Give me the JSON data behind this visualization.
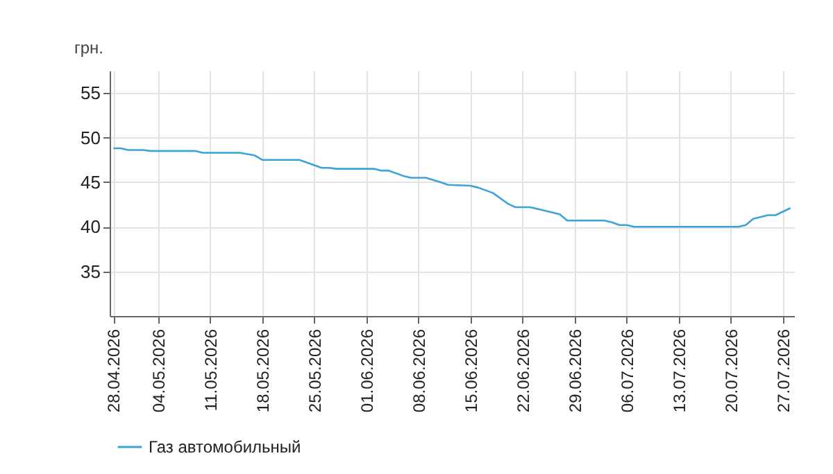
{
  "chart_data": {
    "type": "line",
    "ylabel": "грн.",
    "legend": "bottom",
    "grid": true,
    "marker": "none",
    "line_style": "solid",
    "x": [
      "2026-04-28",
      "2026-04-29",
      "2026-04-30",
      "2026-05-02",
      "2026-05-03",
      "2026-05-09",
      "2026-05-10",
      "2026-05-15",
      "2026-05-17",
      "2026-05-18",
      "2026-05-23",
      "2026-05-24",
      "2026-05-26",
      "2026-05-27",
      "2026-05-28",
      "2026-06-02",
      "2026-06-03",
      "2026-06-04",
      "2026-06-06",
      "2026-06-07",
      "2026-06-09",
      "2026-06-11",
      "2026-06-12",
      "2026-06-15",
      "2026-06-16",
      "2026-06-18",
      "2026-06-20",
      "2026-06-21",
      "2026-06-23",
      "2026-06-24",
      "2026-06-25",
      "2026-06-27",
      "2026-06-28",
      "2026-07-03",
      "2026-07-04",
      "2026-07-05",
      "2026-07-06",
      "2026-07-07",
      "2026-07-21",
      "2026-07-22",
      "2026-07-23",
      "2026-07-25",
      "2026-07-26",
      "2026-07-28"
    ],
    "series": [
      {
        "name": "Газ автомобильный",
        "color": "#3ba3d9",
        "values": [
          48.8,
          48.8,
          48.6,
          48.6,
          48.5,
          48.5,
          48.3,
          48.3,
          48.0,
          47.5,
          47.5,
          47.2,
          46.6,
          46.6,
          46.5,
          46.5,
          46.3,
          46.3,
          45.7,
          45.5,
          45.5,
          45.0,
          44.7,
          44.6,
          44.4,
          43.8,
          42.6,
          42.2,
          42.2,
          42.0,
          41.8,
          41.4,
          40.7,
          40.7,
          40.5,
          40.2,
          40.2,
          40.0,
          40.0,
          40.2,
          40.9,
          41.3,
          41.3,
          42.1
        ]
      }
    ],
    "xlim": [
      "2026-04-27T12:00",
      "2026-07-28T12:00"
    ],
    "xticks": [
      {
        "value": "2026-04-28",
        "label": "28.04.2026"
      },
      {
        "value": "2026-05-04",
        "label": "04.05.2026"
      },
      {
        "value": "2026-05-11",
        "label": "11.05.2026"
      },
      {
        "value": "2026-05-18",
        "label": "18.05.2026"
      },
      {
        "value": "2026-05-25",
        "label": "25.05.2026"
      },
      {
        "value": "2026-06-01",
        "label": "01.06.2026"
      },
      {
        "value": "2026-06-08",
        "label": "08.06.2026"
      },
      {
        "value": "2026-06-15",
        "label": "15.06.2026"
      },
      {
        "value": "2026-06-22",
        "label": "22.06.2026"
      },
      {
        "value": "2026-06-29",
        "label": "29.06.2026"
      },
      {
        "value": "2026-07-06",
        "label": "06.07.2026"
      },
      {
        "value": "2026-07-13",
        "label": "13.07.2026"
      },
      {
        "value": "2026-07-20",
        "label": "20.07.2026"
      },
      {
        "value": "2026-07-27",
        "label": "27.07.2026"
      }
    ],
    "ylim": [
      30,
      57.5
    ],
    "yticks": [
      35,
      40,
      45,
      50,
      55
    ]
  }
}
